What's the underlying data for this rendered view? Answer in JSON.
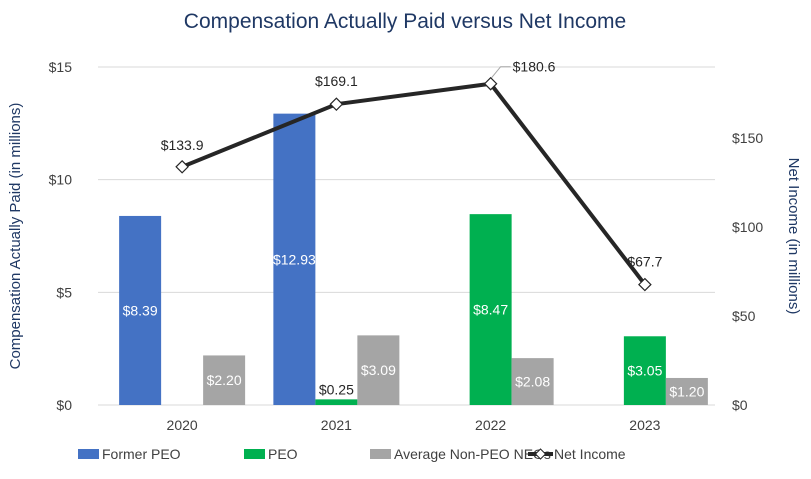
{
  "chart_data": {
    "type": "bar",
    "title": "Compensation Actually Paid versus Net Income",
    "categories": [
      "2020",
      "2021",
      "2022",
      "2023"
    ],
    "ylabel": "Compensation Actually Paid (in millions)",
    "ylabel_right": "Net Income (in millions)",
    "ylim": [
      0,
      15
    ],
    "ylim_right": [
      0,
      190
    ],
    "yticks": [
      "$0",
      "$5",
      "$10",
      "$15"
    ],
    "yticks_values": [
      0,
      5,
      10,
      15
    ],
    "yticks_right": [
      "$0",
      "$50",
      "$100",
      "$150"
    ],
    "yticks_right_values": [
      0,
      50,
      100,
      150
    ],
    "grid": true,
    "legend_position": "bottom",
    "series": [
      {
        "name": "Former PEO",
        "type": "bar",
        "color": "#4472C4",
        "values": [
          8.39,
          12.93,
          null,
          null
        ],
        "labels": [
          "$8.39",
          "$12.93",
          "",
          ""
        ]
      },
      {
        "name": "PEO",
        "type": "bar",
        "color": "#00B050",
        "values": [
          null,
          0.25,
          8.47,
          3.05
        ],
        "labels": [
          "",
          "$0.25",
          "$8.47",
          "$3.05"
        ]
      },
      {
        "name": "Average Non-PEO NEOs",
        "type": "bar",
        "color": "#A5A5A5",
        "values": [
          2.2,
          3.09,
          2.08,
          1.2
        ],
        "labels": [
          "$2.20",
          "$3.09",
          "$2.08",
          "$1.20"
        ]
      },
      {
        "name": "Net Income",
        "type": "line",
        "axis": "right",
        "color": "#262626",
        "marker": "diamond",
        "values": [
          133.9,
          169.1,
          180.6,
          67.7
        ],
        "labels": [
          "$133.9",
          "$169.1",
          "$180.6",
          "$67.7"
        ]
      }
    ]
  }
}
